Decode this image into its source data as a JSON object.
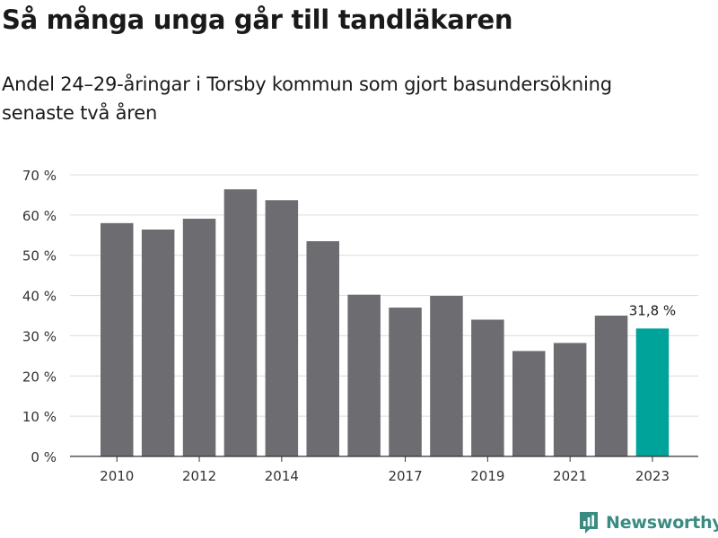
{
  "title": "Så många unga går till tandläkaren",
  "subtitle": "Andel 24–29-åringar i Torsby kommun som gjort basundersökning senaste två åren",
  "brand": {
    "name": "Newsworthy",
    "icon": "newsworthy-logo-icon",
    "color": "#3a8c83"
  },
  "colors": {
    "bar": "#6d6c71",
    "highlight": "#00a39a",
    "grid": "#dcdcdc",
    "axis": "#333333"
  },
  "chart_data": {
    "type": "bar",
    "title": "Så många unga går till tandläkaren",
    "subtitle": "Andel 24–29-åringar i Torsby kommun som gjort basundersökning senaste två åren",
    "xlabel": "",
    "ylabel": "",
    "categories": [
      "2010",
      "2011",
      "2012",
      "2013",
      "2014",
      "2015",
      "2016",
      "2017",
      "2018",
      "2019",
      "2020",
      "2021",
      "2022",
      "2023"
    ],
    "values": [
      58.0,
      56.4,
      59.1,
      66.4,
      63.7,
      53.5,
      40.2,
      37.0,
      39.9,
      34.0,
      26.2,
      28.2,
      35.0,
      31.8
    ],
    "x_tick_labels": [
      "2010",
      "2012",
      "2014",
      "2017",
      "2019",
      "2021",
      "2023"
    ],
    "y_ticks": [
      0,
      10,
      20,
      30,
      40,
      50,
      60,
      70
    ],
    "y_tick_labels": [
      "0 %",
      "10 %",
      "20 %",
      "30 %",
      "40 %",
      "50 %",
      "60 %",
      "70 %"
    ],
    "ylim": [
      0,
      70
    ],
    "grid": true,
    "highlight_index": 13,
    "annotation": {
      "index": 13,
      "text": "31,8 %"
    }
  }
}
